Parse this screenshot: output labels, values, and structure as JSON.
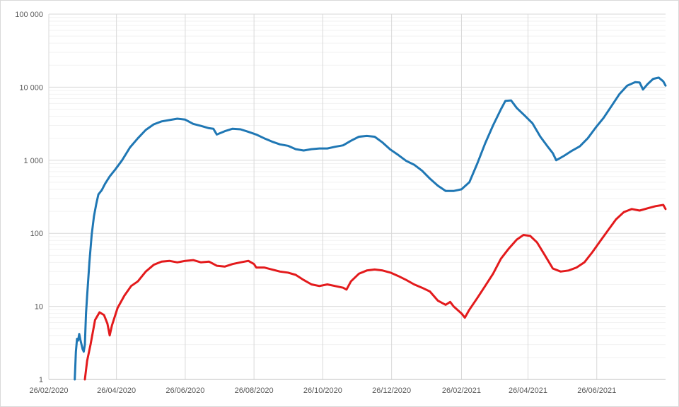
{
  "chart_data": {
    "type": "line",
    "title": "",
    "xlabel": "",
    "ylabel": "",
    "y_scale": "log",
    "ylim": [
      1,
      100000
    ],
    "xlim": [
      "2020-02-26",
      "2021-08-26"
    ],
    "grid": true,
    "legend": "none",
    "y_ticks": [
      {
        "value": 1,
        "label": "1"
      },
      {
        "value": 10,
        "label": "10"
      },
      {
        "value": 100,
        "label": "100"
      },
      {
        "value": 1000,
        "label": "1 000"
      },
      {
        "value": 10000,
        "label": "10 000"
      },
      {
        "value": 100000,
        "label": "100 000"
      }
    ],
    "x_ticks": [
      {
        "value": "2020-02-26",
        "label": "26/02/2020"
      },
      {
        "value": "2020-04-26",
        "label": "26/04/2020"
      },
      {
        "value": "2020-06-26",
        "label": "26/06/2020"
      },
      {
        "value": "2020-08-26",
        "label": "26/08/2020"
      },
      {
        "value": "2020-10-26",
        "label": "26/10/2020"
      },
      {
        "value": "2020-12-26",
        "label": "26/12/2020"
      },
      {
        "value": "2021-02-26",
        "label": "26/02/2021"
      },
      {
        "value": "2021-04-26",
        "label": "26/04/2021"
      },
      {
        "value": "2021-06-26",
        "label": "26/06/2021"
      }
    ],
    "series": [
      {
        "color": "#1f77b4",
        "points": [
          [
            "2020-03-20",
            1
          ],
          [
            "2020-03-21",
            2.4
          ],
          [
            "2020-03-22",
            3.6
          ],
          [
            "2020-03-23",
            3.4
          ],
          [
            "2020-03-24",
            4.2
          ],
          [
            "2020-03-25",
            3.5
          ],
          [
            "2020-03-27",
            2.6
          ],
          [
            "2020-03-28",
            2.4
          ],
          [
            "2020-03-29",
            3.0
          ],
          [
            "2020-03-30",
            8
          ],
          [
            "2020-03-31",
            14
          ],
          [
            "2020-04-02",
            40
          ],
          [
            "2020-04-04",
            95
          ],
          [
            "2020-04-06",
            170
          ],
          [
            "2020-04-08",
            250
          ],
          [
            "2020-04-10",
            340
          ],
          [
            "2020-04-13",
            390
          ],
          [
            "2020-04-16",
            480
          ],
          [
            "2020-04-20",
            600
          ],
          [
            "2020-04-25",
            750
          ],
          [
            "2020-05-01",
            1000
          ],
          [
            "2020-05-08",
            1500
          ],
          [
            "2020-05-15",
            2000
          ],
          [
            "2020-05-22",
            2600
          ],
          [
            "2020-05-29",
            3100
          ],
          [
            "2020-06-05",
            3400
          ],
          [
            "2020-06-12",
            3550
          ],
          [
            "2020-06-19",
            3700
          ],
          [
            "2020-06-26",
            3600
          ],
          [
            "2020-07-03",
            3150
          ],
          [
            "2020-07-10",
            2950
          ],
          [
            "2020-07-17",
            2750
          ],
          [
            "2020-07-21",
            2700
          ],
          [
            "2020-07-24",
            2250
          ],
          [
            "2020-07-31",
            2500
          ],
          [
            "2020-08-07",
            2700
          ],
          [
            "2020-08-14",
            2650
          ],
          [
            "2020-08-21",
            2450
          ],
          [
            "2020-08-28",
            2250
          ],
          [
            "2020-09-04",
            2000
          ],
          [
            "2020-09-11",
            1800
          ],
          [
            "2020-09-18",
            1650
          ],
          [
            "2020-09-25",
            1580
          ],
          [
            "2020-10-02",
            1420
          ],
          [
            "2020-10-09",
            1360
          ],
          [
            "2020-10-16",
            1420
          ],
          [
            "2020-10-23",
            1450
          ],
          [
            "2020-10-30",
            1450
          ],
          [
            "2020-11-06",
            1530
          ],
          [
            "2020-11-13",
            1600
          ],
          [
            "2020-11-20",
            1850
          ],
          [
            "2020-11-27",
            2100
          ],
          [
            "2020-12-04",
            2150
          ],
          [
            "2020-12-11",
            2100
          ],
          [
            "2020-12-18",
            1750
          ],
          [
            "2020-12-25",
            1400
          ],
          [
            "2021-01-01",
            1180
          ],
          [
            "2021-01-08",
            980
          ],
          [
            "2021-01-15",
            870
          ],
          [
            "2021-01-22",
            720
          ],
          [
            "2021-01-29",
            560
          ],
          [
            "2021-02-05",
            450
          ],
          [
            "2021-02-12",
            380
          ],
          [
            "2021-02-19",
            380
          ],
          [
            "2021-02-26",
            400
          ],
          [
            "2021-03-05",
            500
          ],
          [
            "2021-03-12",
            900
          ],
          [
            "2021-03-19",
            1700
          ],
          [
            "2021-03-26",
            3000
          ],
          [
            "2021-04-02",
            5000
          ],
          [
            "2021-04-06",
            6500
          ],
          [
            "2021-04-11",
            6600
          ],
          [
            "2021-04-16",
            5200
          ],
          [
            "2021-04-23",
            4100
          ],
          [
            "2021-04-30",
            3200
          ],
          [
            "2021-05-07",
            2100
          ],
          [
            "2021-05-14",
            1500
          ],
          [
            "2021-05-18",
            1250
          ],
          [
            "2021-05-21",
            1000
          ],
          [
            "2021-05-28",
            1150
          ],
          [
            "2021-06-04",
            1350
          ],
          [
            "2021-06-11",
            1550
          ],
          [
            "2021-06-18",
            2000
          ],
          [
            "2021-06-25",
            2800
          ],
          [
            "2021-07-02",
            3800
          ],
          [
            "2021-07-09",
            5500
          ],
          [
            "2021-07-16",
            8000
          ],
          [
            "2021-07-23",
            10500
          ],
          [
            "2021-07-30",
            11700
          ],
          [
            "2021-08-03",
            11600
          ],
          [
            "2021-08-06",
            9300
          ],
          [
            "2021-08-10",
            11000
          ],
          [
            "2021-08-15",
            13000
          ],
          [
            "2021-08-20",
            13500
          ],
          [
            "2021-08-24",
            12000
          ],
          [
            "2021-08-26",
            10500
          ]
        ]
      },
      {
        "color": "#e31a1c",
        "points": [
          [
            "2020-03-29",
            1
          ],
          [
            "2020-03-31",
            1.8
          ],
          [
            "2020-04-03",
            3.0
          ],
          [
            "2020-04-07",
            6.5
          ],
          [
            "2020-04-11",
            8.3
          ],
          [
            "2020-04-15",
            7.6
          ],
          [
            "2020-04-18",
            5.8
          ],
          [
            "2020-04-20",
            4.0
          ],
          [
            "2020-04-22",
            5.5
          ],
          [
            "2020-04-27",
            9.5
          ],
          [
            "2020-05-03",
            14
          ],
          [
            "2020-05-09",
            19
          ],
          [
            "2020-05-15",
            22
          ],
          [
            "2020-05-22",
            30
          ],
          [
            "2020-05-29",
            37
          ],
          [
            "2020-06-05",
            41
          ],
          [
            "2020-06-12",
            42
          ],
          [
            "2020-06-19",
            40
          ],
          [
            "2020-06-26",
            42
          ],
          [
            "2020-07-03",
            43
          ],
          [
            "2020-07-10",
            40
          ],
          [
            "2020-07-17",
            41
          ],
          [
            "2020-07-24",
            36
          ],
          [
            "2020-07-31",
            35
          ],
          [
            "2020-08-07",
            38
          ],
          [
            "2020-08-14",
            40
          ],
          [
            "2020-08-21",
            42
          ],
          [
            "2020-08-26",
            38
          ],
          [
            "2020-08-28",
            34
          ],
          [
            "2020-09-04",
            34
          ],
          [
            "2020-09-11",
            32
          ],
          [
            "2020-09-18",
            30
          ],
          [
            "2020-09-25",
            29
          ],
          [
            "2020-10-02",
            27
          ],
          [
            "2020-10-09",
            23
          ],
          [
            "2020-10-16",
            20
          ],
          [
            "2020-10-23",
            19
          ],
          [
            "2020-10-30",
            20
          ],
          [
            "2020-11-06",
            19
          ],
          [
            "2020-11-13",
            18
          ],
          [
            "2020-11-16",
            17
          ],
          [
            "2020-11-20",
            22
          ],
          [
            "2020-11-27",
            28
          ],
          [
            "2020-12-04",
            31
          ],
          [
            "2020-12-11",
            32
          ],
          [
            "2020-12-18",
            31
          ],
          [
            "2020-12-25",
            29
          ],
          [
            "2021-01-01",
            26
          ],
          [
            "2021-01-08",
            23
          ],
          [
            "2021-01-15",
            20
          ],
          [
            "2021-01-22",
            18
          ],
          [
            "2021-01-29",
            16
          ],
          [
            "2021-02-05",
            12
          ],
          [
            "2021-02-12",
            10.5
          ],
          [
            "2021-02-16",
            11.5
          ],
          [
            "2021-02-19",
            10
          ],
          [
            "2021-02-26",
            8.0
          ],
          [
            "2021-03-01",
            7.0
          ],
          [
            "2021-03-05",
            9.0
          ],
          [
            "2021-03-12",
            13
          ],
          [
            "2021-03-19",
            19
          ],
          [
            "2021-03-26",
            28
          ],
          [
            "2021-04-02",
            45
          ],
          [
            "2021-04-09",
            62
          ],
          [
            "2021-04-16",
            82
          ],
          [
            "2021-04-22",
            95
          ],
          [
            "2021-04-28",
            92
          ],
          [
            "2021-05-04",
            75
          ],
          [
            "2021-05-11",
            50
          ],
          [
            "2021-05-18",
            33
          ],
          [
            "2021-05-25",
            30
          ],
          [
            "2021-06-01",
            31
          ],
          [
            "2021-06-08",
            34
          ],
          [
            "2021-06-15",
            40
          ],
          [
            "2021-06-22",
            55
          ],
          [
            "2021-06-29",
            78
          ],
          [
            "2021-07-06",
            110
          ],
          [
            "2021-07-13",
            155
          ],
          [
            "2021-07-20",
            195
          ],
          [
            "2021-07-27",
            215
          ],
          [
            "2021-08-03",
            205
          ],
          [
            "2021-08-10",
            220
          ],
          [
            "2021-08-17",
            235
          ],
          [
            "2021-08-24",
            245
          ],
          [
            "2021-08-26",
            215
          ]
        ]
      }
    ]
  }
}
